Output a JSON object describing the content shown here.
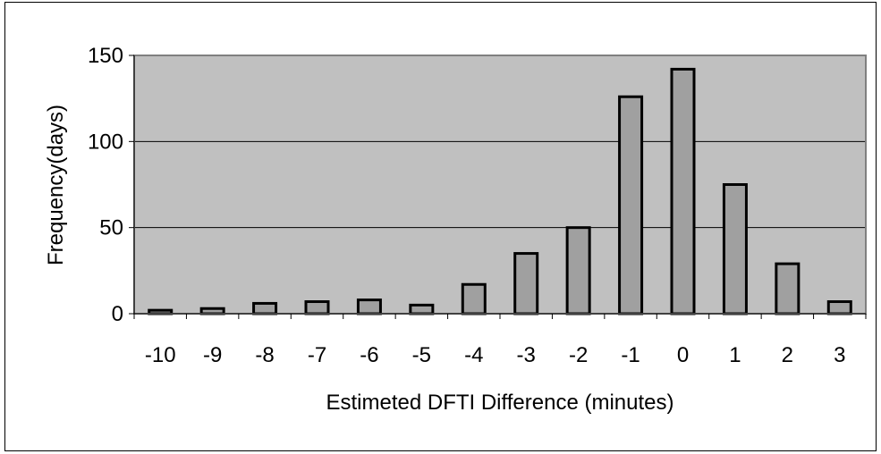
{
  "chart_data": {
    "type": "bar",
    "title": "",
    "xlabel": "Estimeted DFTI Difference (minutes)",
    "ylabel": "Frequency(days)",
    "categories": [
      "-10",
      "-9",
      "-8",
      "-7",
      "-6",
      "-5",
      "-4",
      "-3",
      "-2",
      "-1",
      "0",
      "1",
      "2",
      "3"
    ],
    "values": [
      2,
      3,
      6,
      7,
      8,
      5,
      17,
      35,
      50,
      126,
      142,
      75,
      29,
      7
    ],
    "ylim": [
      0,
      150
    ],
    "yticks": [
      0,
      50,
      100,
      150
    ],
    "grid": true,
    "colors": {
      "plot_background": "#c0c0c0",
      "bar_fill": "#a0a0a0",
      "bar_stroke": "#000000",
      "gridline": "#000000",
      "plot_border": "#808080"
    }
  }
}
